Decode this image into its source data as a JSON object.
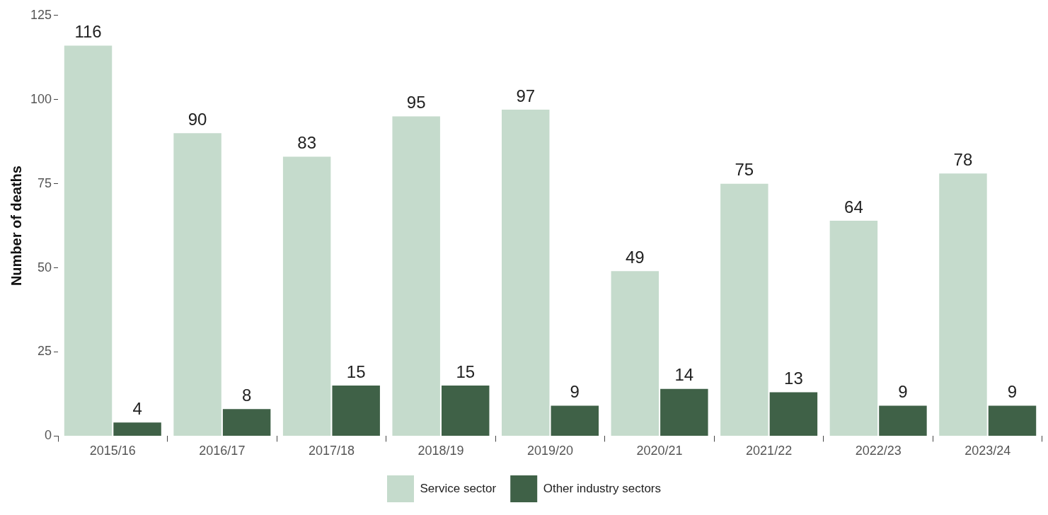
{
  "chart_data": {
    "type": "bar",
    "ylabel": "Number of deaths",
    "categories": [
      "2015/16",
      "2016/17",
      "2017/18",
      "2018/19",
      "2019/20",
      "2020/21",
      "2021/22",
      "2022/23",
      "2023/24"
    ],
    "series": [
      {
        "name": "Service sector",
        "color": "#c5dbcc",
        "values": [
          116,
          90,
          83,
          95,
          97,
          49,
          75,
          64,
          78
        ]
      },
      {
        "name": "Other industry sectors",
        "color": "#3f6147",
        "values": [
          4,
          8,
          15,
          15,
          9,
          14,
          13,
          9,
          9
        ]
      }
    ],
    "ylim": [
      0,
      125
    ],
    "yticks": [
      0,
      25,
      50,
      75,
      100,
      125
    ],
    "legend": "bottom",
    "data_labels": true
  }
}
